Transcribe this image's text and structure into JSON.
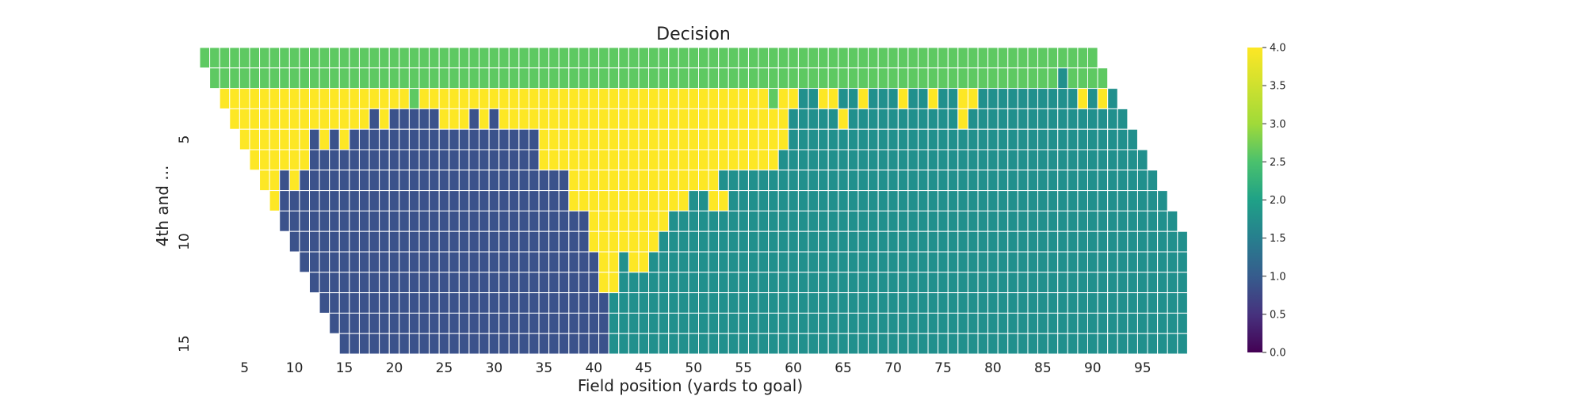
{
  "chart_data": {
    "type": "heatmap",
    "title": "Decision",
    "xlabel": "Field position (yards to goal)",
    "ylabel": "4th and ...",
    "x_range": [
      1,
      99
    ],
    "y_range": [
      1,
      15
    ],
    "x_ticks": [
      5,
      10,
      15,
      20,
      25,
      30,
      35,
      40,
      45,
      50,
      55,
      60,
      65,
      70,
      75,
      80,
      85,
      90,
      95
    ],
    "y_ticks": [
      5,
      10,
      15
    ],
    "colorbar": {
      "min": 0.0,
      "max": 4.0,
      "ticks": [
        "0.0",
        "0.5",
        "1.0",
        "1.5",
        "2.0",
        "2.5",
        "3.0",
        "3.5",
        "4.0"
      ],
      "colormap": "viridis"
    },
    "grid": false,
    "colors": {
      "1": "#3b528b",
      "2": "#21908d",
      "3": "#5ec962",
      "4": "#fde725"
    },
    "rows": [
      {
        "y": 1,
        "x_start": 1,
        "x_end": 90,
        "runs": [
          [
            1,
            90,
            3
          ]
        ]
      },
      {
        "y": 2,
        "x_start": 2,
        "x_end": 91,
        "runs": [
          [
            2,
            86,
            3
          ],
          [
            87,
            87,
            2
          ],
          [
            88,
            91,
            3
          ]
        ]
      },
      {
        "y": 3,
        "x_start": 3,
        "x_end": 92,
        "runs": [
          [
            3,
            21,
            4
          ],
          [
            22,
            22,
            3
          ],
          [
            23,
            57,
            4
          ],
          [
            58,
            58,
            3
          ],
          [
            59,
            60,
            4
          ],
          [
            61,
            62,
            2
          ],
          [
            63,
            64,
            4
          ],
          [
            65,
            66,
            2
          ],
          [
            67,
            67,
            4
          ],
          [
            68,
            70,
            2
          ],
          [
            71,
            71,
            4
          ],
          [
            72,
            73,
            2
          ],
          [
            74,
            74,
            4
          ],
          [
            75,
            76,
            2
          ],
          [
            77,
            78,
            4
          ],
          [
            79,
            88,
            2
          ],
          [
            89,
            89,
            4
          ],
          [
            90,
            90,
            2
          ],
          [
            91,
            91,
            4
          ],
          [
            92,
            92,
            2
          ]
        ]
      },
      {
        "y": 4,
        "x_start": 4,
        "x_end": 93,
        "runs": [
          [
            4,
            17,
            4
          ],
          [
            18,
            18,
            1
          ],
          [
            19,
            19,
            4
          ],
          [
            20,
            24,
            1
          ],
          [
            25,
            27,
            4
          ],
          [
            28,
            28,
            1
          ],
          [
            29,
            29,
            4
          ],
          [
            30,
            30,
            1
          ],
          [
            31,
            59,
            4
          ],
          [
            60,
            64,
            2
          ],
          [
            65,
            65,
            4
          ],
          [
            66,
            76,
            2
          ],
          [
            77,
            77,
            4
          ],
          [
            78,
            93,
            2
          ]
        ]
      },
      {
        "y": 5,
        "x_start": 5,
        "x_end": 94,
        "runs": [
          [
            5,
            11,
            4
          ],
          [
            12,
            12,
            1
          ],
          [
            13,
            13,
            4
          ],
          [
            14,
            14,
            1
          ],
          [
            15,
            15,
            4
          ],
          [
            16,
            34,
            1
          ],
          [
            35,
            59,
            4
          ],
          [
            60,
            94,
            2
          ]
        ]
      },
      {
        "y": 6,
        "x_start": 6,
        "x_end": 95,
        "runs": [
          [
            6,
            11,
            4
          ],
          [
            12,
            34,
            1
          ],
          [
            35,
            58,
            4
          ],
          [
            59,
            95,
            2
          ]
        ]
      },
      {
        "y": 7,
        "x_start": 7,
        "x_end": 96,
        "runs": [
          [
            7,
            8,
            4
          ],
          [
            9,
            9,
            1
          ],
          [
            10,
            10,
            4
          ],
          [
            11,
            37,
            1
          ],
          [
            38,
            52,
            4
          ],
          [
            53,
            96,
            2
          ]
        ]
      },
      {
        "y": 8,
        "x_start": 8,
        "x_end": 97,
        "runs": [
          [
            8,
            8,
            4
          ],
          [
            9,
            37,
            1
          ],
          [
            38,
            49,
            4
          ],
          [
            50,
            51,
            2
          ],
          [
            52,
            53,
            4
          ],
          [
            54,
            97,
            2
          ]
        ]
      },
      {
        "y": 9,
        "x_start": 9,
        "x_end": 98,
        "runs": [
          [
            9,
            39,
            1
          ],
          [
            40,
            47,
            4
          ],
          [
            48,
            98,
            2
          ]
        ]
      },
      {
        "y": 10,
        "x_start": 10,
        "x_end": 99,
        "runs": [
          [
            10,
            39,
            1
          ],
          [
            40,
            46,
            4
          ],
          [
            47,
            99,
            2
          ]
        ]
      },
      {
        "y": 11,
        "x_start": 11,
        "x_end": 99,
        "runs": [
          [
            11,
            40,
            1
          ],
          [
            41,
            42,
            4
          ],
          [
            43,
            43,
            2
          ],
          [
            44,
            45,
            4
          ],
          [
            46,
            99,
            2
          ]
        ]
      },
      {
        "y": 12,
        "x_start": 12,
        "x_end": 99,
        "runs": [
          [
            12,
            40,
            1
          ],
          [
            41,
            42,
            4
          ],
          [
            43,
            99,
            2
          ]
        ]
      },
      {
        "y": 13,
        "x_start": 13,
        "x_end": 99,
        "runs": [
          [
            13,
            41,
            1
          ],
          [
            42,
            99,
            2
          ]
        ]
      },
      {
        "y": 14,
        "x_start": 14,
        "x_end": 99,
        "runs": [
          [
            14,
            41,
            1
          ],
          [
            42,
            99,
            2
          ]
        ]
      },
      {
        "y": 15,
        "x_start": 15,
        "x_end": 99,
        "runs": [
          [
            15,
            41,
            1
          ],
          [
            42,
            99,
            2
          ]
        ]
      }
    ]
  }
}
